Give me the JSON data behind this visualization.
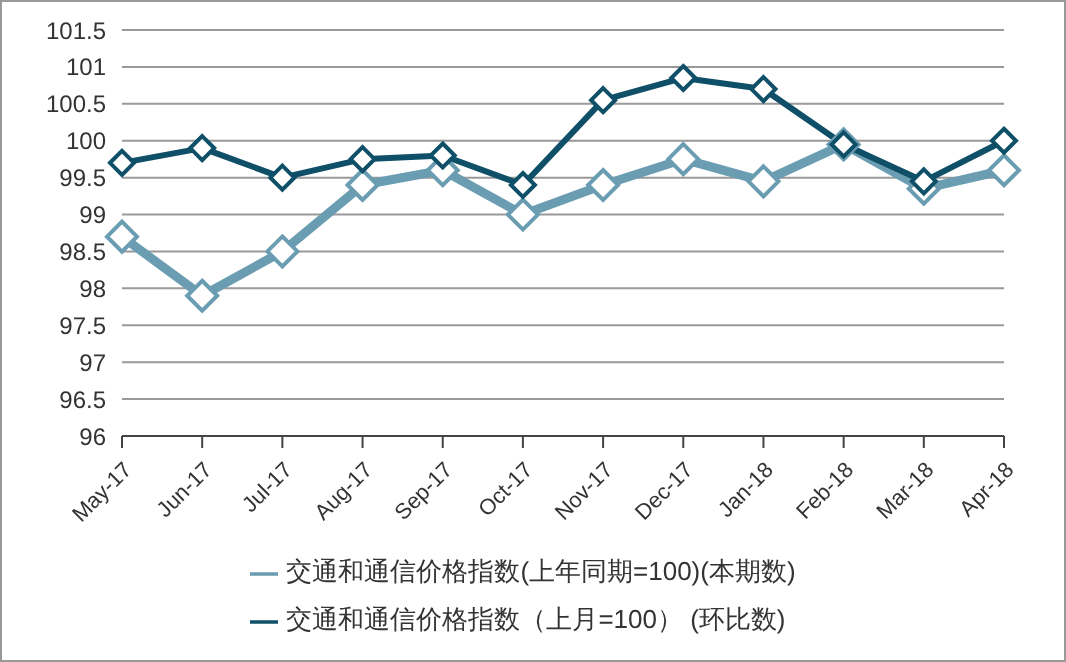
{
  "chart_data": {
    "type": "line",
    "categories": [
      "May-17",
      "Jun-17",
      "Jul-17",
      "Aug-17",
      "Sep-17",
      "Oct-17",
      "Nov-17",
      "Dec-17",
      "Jan-18",
      "Feb-18",
      "Mar-18",
      "Apr-18"
    ],
    "series": [
      {
        "name": "交通和通信价格指数(上年同期=100)(本期数)",
        "color": "#6b9db2",
        "values": [
          98.7,
          97.9,
          98.5,
          99.4,
          99.6,
          99.0,
          99.4,
          99.75,
          99.45,
          99.95,
          99.35,
          99.6
        ]
      },
      {
        "name": "交通和通信价格指数（上月=100）  (环比数)",
        "color": "#0f5068",
        "values": [
          99.7,
          99.9,
          99.5,
          99.75,
          99.8,
          99.4,
          100.55,
          100.85,
          100.7,
          99.95,
          99.45,
          100.0
        ]
      }
    ],
    "ylim": [
      96,
      101.5
    ],
    "yticks": [
      96,
      96.5,
      97,
      97.5,
      98,
      98.5,
      99,
      99.5,
      100,
      100.5,
      101,
      101.5
    ],
    "grid": "y",
    "legend": "bottom",
    "marker": "diamond",
    "line_style": "solid"
  }
}
